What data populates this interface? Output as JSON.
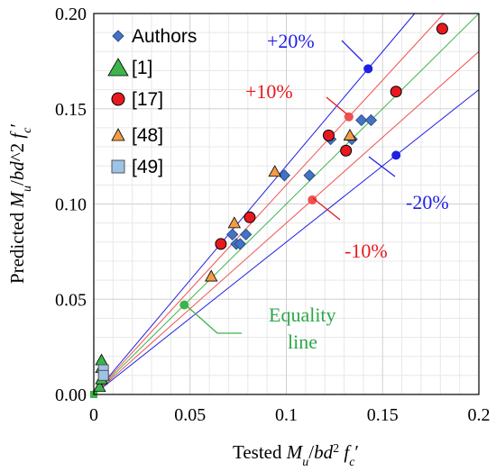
{
  "chart_data": {
    "type": "scatter",
    "xlabel_parts": [
      "Tested ",
      "M",
      "u",
      "/",
      "bd",
      "2",
      " ",
      "f",
      "c",
      "′"
    ],
    "ylabel_parts": [
      "Predicted ",
      "M",
      "u",
      "/",
      "bd",
      "^2 ",
      "f",
      "c",
      "′"
    ],
    "xlim": [
      0,
      0.2
    ],
    "ylim": [
      0,
      0.2
    ],
    "x_ticks": [
      "0",
      "0.05",
      "0.1",
      "0.15",
      "0.2"
    ],
    "x_tick_values": [
      0,
      0.05,
      0.1,
      0.15,
      0.2
    ],
    "y_ticks": [
      "0.00",
      "0.05",
      "0.10",
      "0.15",
      "0.20"
    ],
    "y_tick_values": [
      0,
      0.05,
      0.1,
      0.15,
      0.2
    ],
    "grid": true,
    "minor_grid_step": 0.01,
    "legend_position": "top-left",
    "series": [
      {
        "name": "Authors",
        "marker": "diamond",
        "color": "#4472C4",
        "points": [
          [
            0.072,
            0.084
          ],
          [
            0.074,
            0.079
          ],
          [
            0.076,
            0.079
          ],
          [
            0.079,
            0.084
          ],
          [
            0.099,
            0.115
          ],
          [
            0.112,
            0.115
          ],
          [
            0.123,
            0.134
          ],
          [
            0.134,
            0.134
          ],
          [
            0.139,
            0.144
          ],
          [
            0.144,
            0.144
          ]
        ]
      },
      {
        "name": "[1]",
        "marker": "triangle",
        "color": "#3CB44B",
        "points": [
          [
            0.003,
            0.004
          ],
          [
            0.004,
            0.008
          ],
          [
            0.004,
            0.014
          ],
          [
            0.004,
            0.018
          ],
          [
            0.005,
            0.01
          ]
        ]
      },
      {
        "name": "[17]",
        "marker": "circle",
        "color": "#E8191E",
        "points": [
          [
            0.066,
            0.079
          ],
          [
            0.081,
            0.093
          ],
          [
            0.122,
            0.136
          ],
          [
            0.131,
            0.128
          ],
          [
            0.157,
            0.159
          ],
          [
            0.181,
            0.192
          ]
        ]
      },
      {
        "name": "[48]",
        "marker": "triangle",
        "color": "#F39C45",
        "points": [
          [
            0.061,
            0.062
          ],
          [
            0.073,
            0.09
          ],
          [
            0.094,
            0.117
          ],
          [
            0.133,
            0.136
          ]
        ]
      },
      {
        "name": "[49]",
        "marker": "square",
        "color": "#9DC3E6",
        "points": [
          [
            0.005,
            0.013
          ],
          [
            0.005,
            0.01
          ]
        ]
      }
    ],
    "reference_lines": [
      {
        "label": "+20%",
        "slope": 1.2,
        "color": "#1F1FE6",
        "marker_x": 0.1425,
        "text_color": "#1F1FE6"
      },
      {
        "label": "+10%",
        "slope": 1.1,
        "color": "#F05050",
        "marker_x": 0.1325,
        "text_color": "#E8191E"
      },
      {
        "label": "Equality\nline",
        "slope": 1.0,
        "color": "#3CB44B",
        "marker_x": 0.047,
        "text_color": "#2CA84A"
      },
      {
        "label": "-10%",
        "slope": 0.9,
        "color": "#F05050",
        "marker_x": 0.1135,
        "text_color": "#E8191E"
      },
      {
        "label": "-20%",
        "slope": 0.8,
        "color": "#1F1FE6",
        "marker_x": 0.157,
        "text_color": "#1F1FE6"
      }
    ],
    "origin_marker": {
      "x": 0,
      "y": 0,
      "color": "#3CB44B"
    }
  },
  "annotations": {
    "plus20": "+20%",
    "plus10": "+10%",
    "minus10": "-10%",
    "minus20": "-20%",
    "equality_line1": "Equality",
    "equality_line2": "line"
  }
}
